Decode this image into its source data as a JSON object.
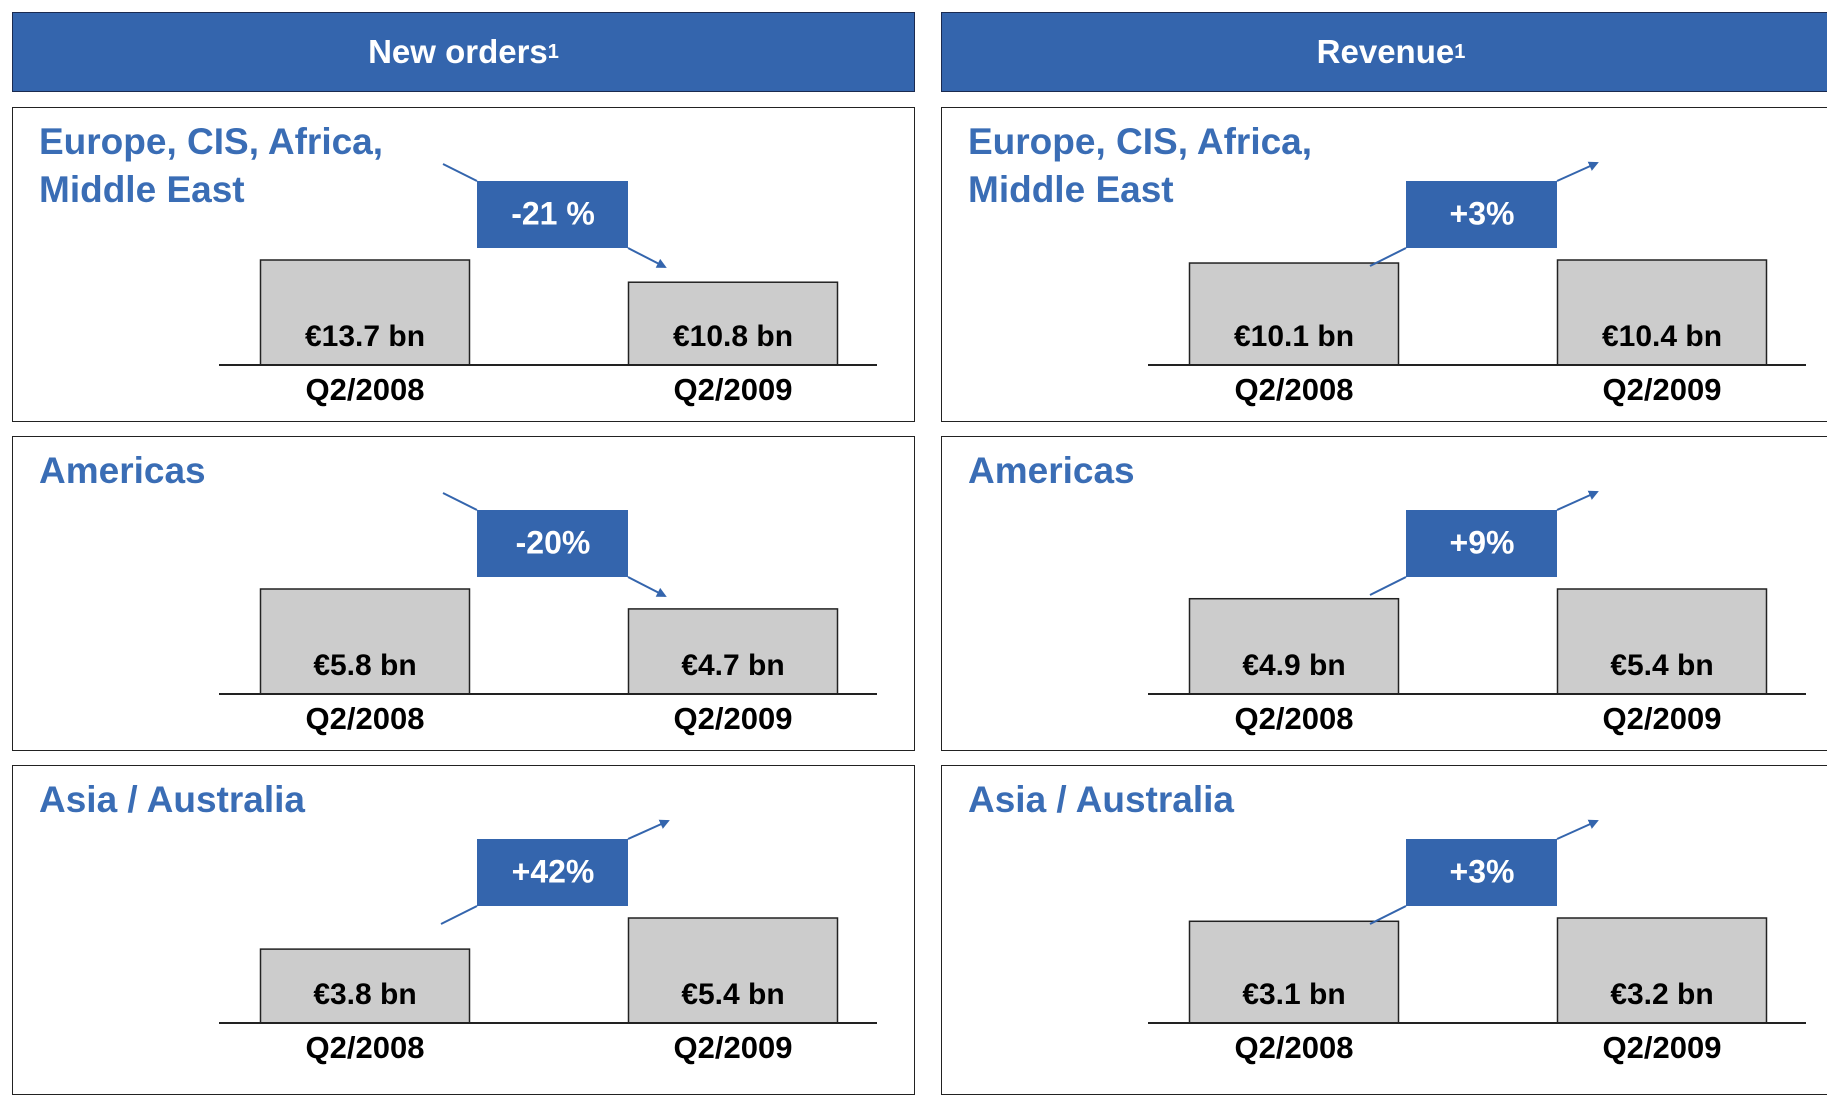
{
  "columns": [
    {
      "title": "New orders",
      "footnote": "1"
    },
    {
      "title": "Revenue",
      "footnote": "1"
    }
  ],
  "chart_data": [
    {
      "type": "bar",
      "title": "Europe, CIS, Africa, Middle East",
      "categories": [
        "Q2/2008",
        "Q2/2009"
      ],
      "values": [
        13.7,
        10.8
      ],
      "value_labels": [
        "€13.7 bn",
        "€10.8 bn"
      ],
      "annotation": "-21 %",
      "trend": "down",
      "color": "#cccccc"
    },
    {
      "type": "bar",
      "title": "Europe, CIS, Africa, Middle East",
      "categories": [
        "Q2/2008",
        "Q2/2009"
      ],
      "values": [
        10.1,
        10.4
      ],
      "value_labels": [
        "€10.1 bn",
        "€10.4 bn"
      ],
      "annotation": "+3%",
      "trend": "up",
      "color": "#cccccc"
    },
    {
      "type": "bar",
      "title": "Americas",
      "categories": [
        "Q2/2008",
        "Q2/2009"
      ],
      "values": [
        5.8,
        4.7
      ],
      "value_labels": [
        "€5.8 bn",
        "€4.7 bn"
      ],
      "annotation": "-20%",
      "trend": "down",
      "color": "#cccccc"
    },
    {
      "type": "bar",
      "title": "Americas",
      "categories": [
        "Q2/2008",
        "Q2/2009"
      ],
      "values": [
        4.9,
        5.4
      ],
      "value_labels": [
        "€4.9 bn",
        "€5.4 bn"
      ],
      "annotation": "+9%",
      "trend": "up",
      "color": "#cccccc"
    },
    {
      "type": "bar",
      "title": "Asia / Australia",
      "categories": [
        "Q2/2008",
        "Q2/2009"
      ],
      "values": [
        3.8,
        5.4
      ],
      "value_labels": [
        "€3.8 bn",
        "€5.4 bn"
      ],
      "annotation": "+42%",
      "trend": "up",
      "color": "#cccccc"
    },
    {
      "type": "bar",
      "title": "Asia / Australia",
      "categories": [
        "Q2/2008",
        "Q2/2009"
      ],
      "values": [
        3.1,
        3.2
      ],
      "value_labels": [
        "€3.1 bn",
        "€3.2 bn"
      ],
      "annotation": "+3%",
      "trend": "up",
      "color": "#cccccc"
    }
  ]
}
